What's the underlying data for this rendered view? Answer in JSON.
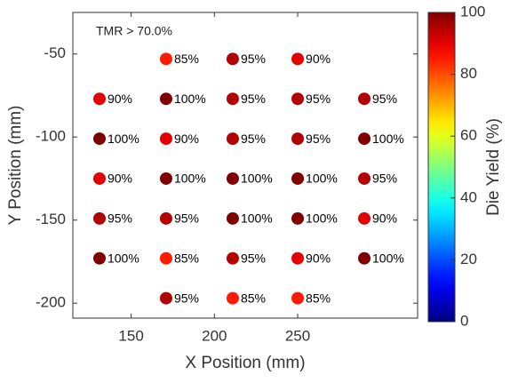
{
  "chart_data": {
    "type": "scatter",
    "annotation": "TMR > 70.0%",
    "x_label": "X Position (mm)",
    "y_label": "Y Position (mm)",
    "xlim": [
      115,
      322
    ],
    "xticks": [
      150,
      200,
      250
    ],
    "ylim": [
      -209,
      -25
    ],
    "yticks": [
      -50,
      -100,
      -150,
      -200
    ],
    "colormap": "jet",
    "colorbar": {
      "label": "Die Yield (%)",
      "lim": [
        0,
        100
      ],
      "ticks": [
        0,
        20,
        40,
        60,
        80,
        100
      ]
    },
    "x": [
      171,
      211,
      250,
      131,
      171,
      211,
      250,
      290,
      131,
      171,
      211,
      250,
      290,
      131,
      171,
      211,
      250,
      290,
      131,
      171,
      211,
      250,
      290,
      131,
      171,
      211,
      250,
      290,
      171,
      211,
      250
    ],
    "y": [
      -53,
      -53,
      -53,
      -77,
      -77,
      -77,
      -77,
      -77,
      -101,
      -101,
      -101,
      -101,
      -101,
      -125,
      -125,
      -125,
      -125,
      -125,
      -149,
      -149,
      -149,
      -149,
      -149,
      -173,
      -173,
      -173,
      -173,
      -173,
      -197,
      -197,
      -197
    ],
    "values": [
      85,
      95,
      90,
      90,
      100,
      95,
      95,
      95,
      100,
      90,
      95,
      95,
      100,
      90,
      100,
      100,
      100,
      95,
      95,
      95,
      100,
      100,
      90,
      100,
      85,
      95,
      90,
      100,
      95,
      85,
      85
    ],
    "value_labels": [
      "85%",
      "95%",
      "90%",
      "90%",
      "100%",
      "95%",
      "95%",
      "95%",
      "100%",
      "90%",
      "95%",
      "95%",
      "100%",
      "90%",
      "100%",
      "100%",
      "100%",
      "95%",
      "95%",
      "95%",
      "100%",
      "100%",
      "90%",
      "100%",
      "85%",
      "95%",
      "90%",
      "100%",
      "95%",
      "85%",
      "85%"
    ]
  }
}
